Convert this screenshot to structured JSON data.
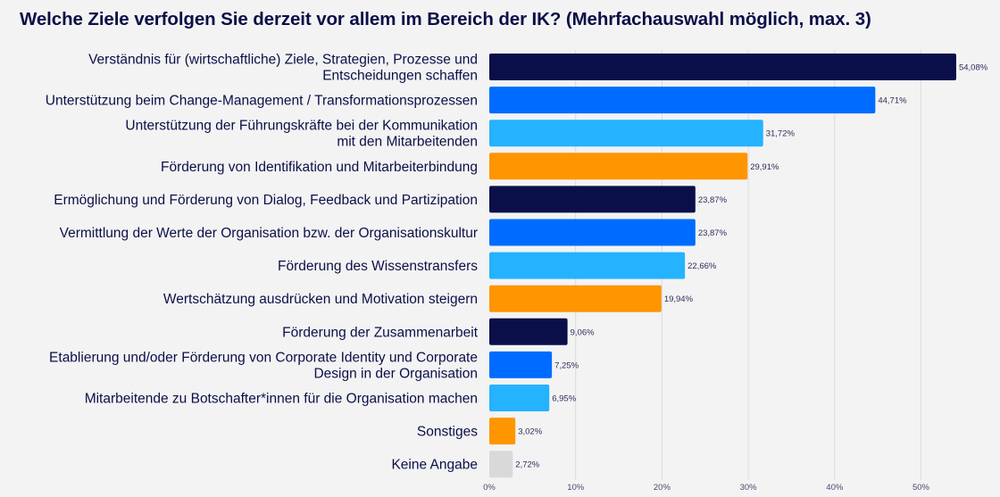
{
  "chart_data": {
    "type": "bar",
    "orientation": "horizontal",
    "title": "Welche Ziele verfolgen Sie derzeit vor allem im Bereich der IK? (Mehrfachauswahl möglich, max. 3)",
    "categories": [
      [
        "Verständnis für (wirtschaftliche) Ziele, Strategien, Prozesse und",
        "Entscheidungen schaffen"
      ],
      [
        "Unterstützung beim Change-Management / Transformationsprozessen"
      ],
      [
        "Unterstützung der Führungskräfte bei der Kommunikation",
        "mit den Mitarbeitenden"
      ],
      [
        "Förderung von Identifikation und Mitarbeiterbindung"
      ],
      [
        "Ermöglichung und Förderung von Dialog, Feedback und Partizipation"
      ],
      [
        "Vermittlung der Werte der Organisation bzw. der Organisationskultur"
      ],
      [
        "Förderung des Wissenstransfers"
      ],
      [
        "Wertschätzung ausdrücken und Motivation steigern"
      ],
      [
        "Förderung der Zusammenarbeit"
      ],
      [
        "Etablierung und/oder Förderung von Corporate Identity und Corporate",
        "Design in der Organisation"
      ],
      [
        "Mitarbeitende zu Botschafter*innen für die Organisation machen"
      ],
      [
        "Sonstiges"
      ],
      [
        "Keine Angabe"
      ]
    ],
    "values": [
      54.08,
      44.71,
      31.72,
      29.91,
      23.87,
      23.87,
      22.66,
      19.94,
      9.06,
      7.25,
      6.95,
      3.02,
      2.72
    ],
    "value_labels": [
      "54,08%",
      "44,71%",
      "31,72%",
      "29,91%",
      "23,87%",
      "23,87%",
      "22,66%",
      "19,94%",
      "9,06%",
      "7,25%",
      "6,95%",
      "3,02%",
      "2,72%"
    ],
    "colors": [
      "#0a0f4a",
      "#006cff",
      "#25b2ff",
      "#ff9500",
      "#0a0f4a",
      "#006cff",
      "#25b2ff",
      "#ff9500",
      "#0a0f4a",
      "#006cff",
      "#25b2ff",
      "#ff9500",
      "#d9d9d9"
    ],
    "xlim": [
      0,
      56
    ],
    "xticks": [
      0,
      10,
      20,
      30,
      40,
      50
    ],
    "xtick_labels": [
      "0%",
      "10%",
      "20%",
      "30%",
      "40%",
      "50%"
    ],
    "grid": true,
    "xlabel": "",
    "ylabel": ""
  }
}
